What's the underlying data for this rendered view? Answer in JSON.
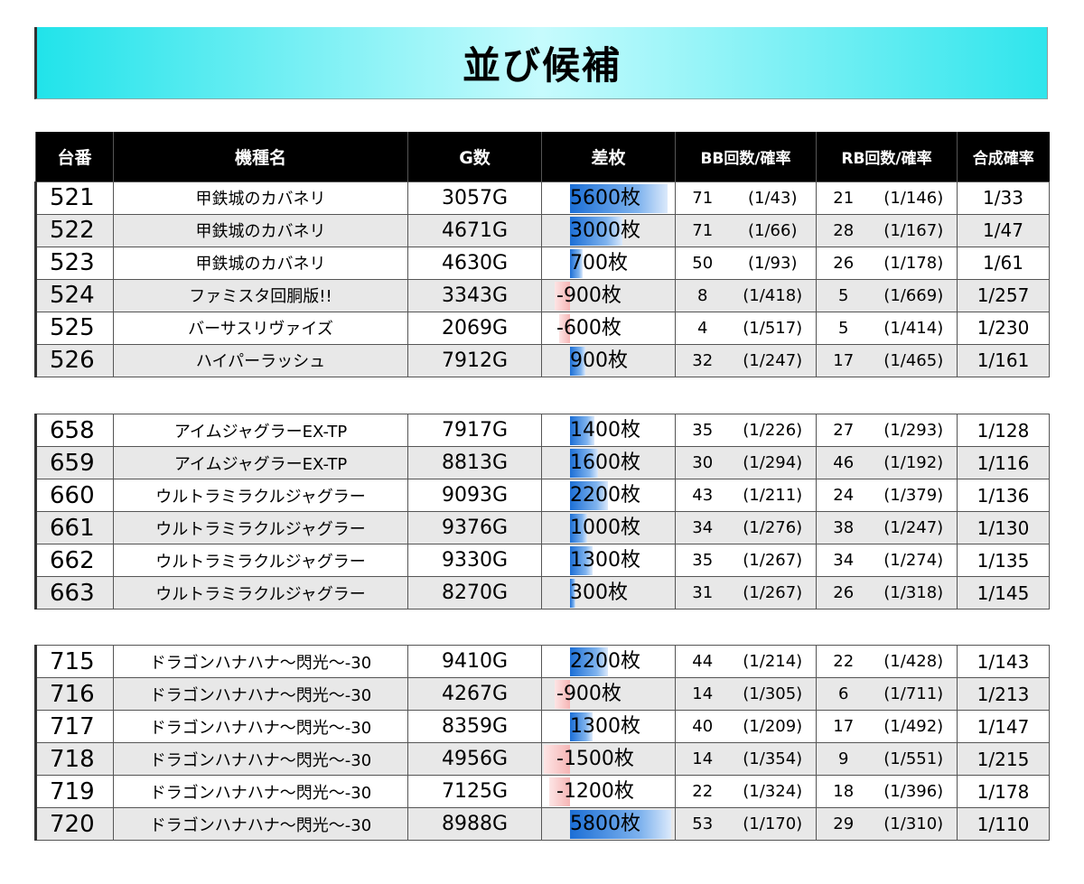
{
  "title": "並び候補",
  "headers": [
    "台番",
    "機種名",
    "G数",
    "差枚",
    "BB回数/確率",
    "RB回数/確率",
    "合成確率"
  ],
  "groups": [
    {
      "rows": [
        {
          "no": "521",
          "name": "甲鉄城のカバネリ",
          "games": "3057G",
          "diff": "5600枚",
          "diff_value": 5600,
          "bb": "71",
          "bb_prob": "(1/43)",
          "rb": "21",
          "rb_prob": "(1/146)",
          "comb": "1/33"
        },
        {
          "no": "522",
          "name": "甲鉄城のカバネリ",
          "games": "4671G",
          "diff": "3000枚",
          "diff_value": 3000,
          "bb": "71",
          "bb_prob": "(1/66)",
          "rb": "28",
          "rb_prob": "(1/167)",
          "comb": "1/47"
        },
        {
          "no": "523",
          "name": "甲鉄城のカバネリ",
          "games": "4630G",
          "diff": "700枚",
          "diff_value": 700,
          "bb": "50",
          "bb_prob": "(1/93)",
          "rb": "26",
          "rb_prob": "(1/178)",
          "comb": "1/61"
        },
        {
          "no": "524",
          "name": "ファミスタ回胴版!!",
          "games": "3343G",
          "diff": "-900枚",
          "diff_value": -900,
          "bb": "8",
          "bb_prob": "(1/418)",
          "rb": "5",
          "rb_prob": "(1/669)",
          "comb": "1/257"
        },
        {
          "no": "525",
          "name": "バーサスリヴァイズ",
          "games": "2069G",
          "diff": "-600枚",
          "diff_value": -600,
          "bb": "4",
          "bb_prob": "(1/517)",
          "rb": "5",
          "rb_prob": "(1/414)",
          "comb": "1/230"
        },
        {
          "no": "526",
          "name": "ハイパーラッシュ",
          "games": "7912G",
          "diff": "900枚",
          "diff_value": 900,
          "bb": "32",
          "bb_prob": "(1/247)",
          "rb": "17",
          "rb_prob": "(1/465)",
          "comb": "1/161"
        }
      ]
    },
    {
      "rows": [
        {
          "no": "658",
          "name": "アイムジャグラーEX-TP",
          "games": "7917G",
          "diff": "1400枚",
          "diff_value": 1400,
          "bb": "35",
          "bb_prob": "(1/226)",
          "rb": "27",
          "rb_prob": "(1/293)",
          "comb": "1/128"
        },
        {
          "no": "659",
          "name": "アイムジャグラーEX-TP",
          "games": "8813G",
          "diff": "1600枚",
          "diff_value": 1600,
          "bb": "30",
          "bb_prob": "(1/294)",
          "rb": "46",
          "rb_prob": "(1/192)",
          "comb": "1/116"
        },
        {
          "no": "660",
          "name": "ウルトラミラクルジャグラー",
          "games": "9093G",
          "diff": "2200枚",
          "diff_value": 2200,
          "bb": "43",
          "bb_prob": "(1/211)",
          "rb": "24",
          "rb_prob": "(1/379)",
          "comb": "1/136"
        },
        {
          "no": "661",
          "name": "ウルトラミラクルジャグラー",
          "games": "9376G",
          "diff": "1000枚",
          "diff_value": 1000,
          "bb": "34",
          "bb_prob": "(1/276)",
          "rb": "38",
          "rb_prob": "(1/247)",
          "comb": "1/130"
        },
        {
          "no": "662",
          "name": "ウルトラミラクルジャグラー",
          "games": "9330G",
          "diff": "1300枚",
          "diff_value": 1300,
          "bb": "35",
          "bb_prob": "(1/267)",
          "rb": "34",
          "rb_prob": "(1/274)",
          "comb": "1/135"
        },
        {
          "no": "663",
          "name": "ウルトラミラクルジャグラー",
          "games": "8270G",
          "diff": "300枚",
          "diff_value": 300,
          "bb": "31",
          "bb_prob": "(1/267)",
          "rb": "26",
          "rb_prob": "(1/318)",
          "comb": "1/145"
        }
      ]
    },
    {
      "rows": [
        {
          "no": "715",
          "name": "ドラゴンハナハナ～閃光～-30",
          "games": "9410G",
          "diff": "2200枚",
          "diff_value": 2200,
          "bb": "44",
          "bb_prob": "(1/214)",
          "rb": "22",
          "rb_prob": "(1/428)",
          "comb": "1/143"
        },
        {
          "no": "716",
          "name": "ドラゴンハナハナ～閃光～-30",
          "games": "4267G",
          "diff": "-900枚",
          "diff_value": -900,
          "bb": "14",
          "bb_prob": "(1/305)",
          "rb": "6",
          "rb_prob": "(1/711)",
          "comb": "1/213"
        },
        {
          "no": "717",
          "name": "ドラゴンハナハナ～閃光～-30",
          "games": "8359G",
          "diff": "1300枚",
          "diff_value": 1300,
          "bb": "40",
          "bb_prob": "(1/209)",
          "rb": "17",
          "rb_prob": "(1/492)",
          "comb": "1/147"
        },
        {
          "no": "718",
          "name": "ドラゴンハナハナ～閃光～-30",
          "games": "4956G",
          "diff": "-1500枚",
          "diff_value": -1500,
          "bb": "14",
          "bb_prob": "(1/354)",
          "rb": "9",
          "rb_prob": "(1/551)",
          "comb": "1/215"
        },
        {
          "no": "719",
          "name": "ドラゴンハナハナ～閃光～-30",
          "games": "7125G",
          "diff": "-1200枚",
          "diff_value": -1200,
          "bb": "22",
          "bb_prob": "(1/324)",
          "rb": "18",
          "rb_prob": "(1/396)",
          "comb": "1/178"
        },
        {
          "no": "720",
          "name": "ドラゴンハナハナ～閃光～-30",
          "games": "8988G",
          "diff": "5800枚",
          "diff_value": 5800,
          "bb": "53",
          "bb_prob": "(1/170)",
          "rb": "29",
          "rb_prob": "(1/310)",
          "comb": "1/110"
        }
      ]
    }
  ]
}
